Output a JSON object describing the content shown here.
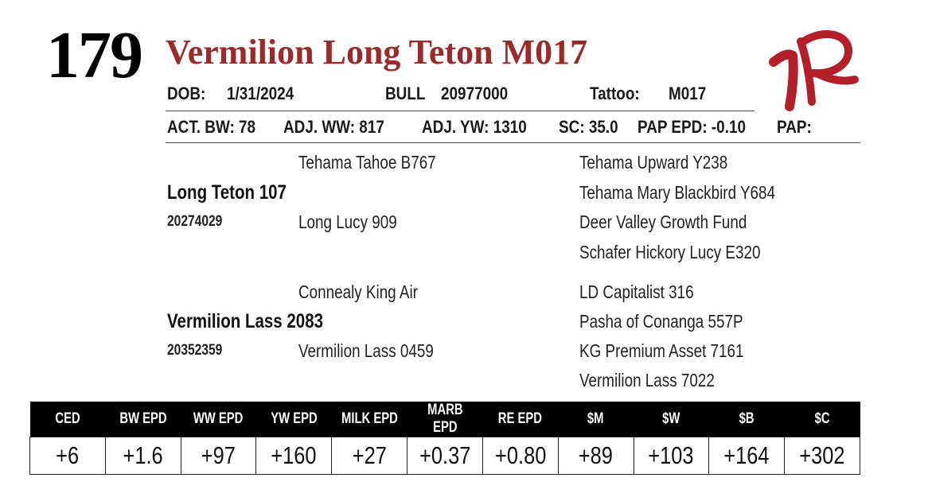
{
  "lot_number": "179",
  "animal_name": "Vermilion Long Teton M017",
  "info": {
    "dob_label": "DOB:",
    "dob_value": "1/31/2024",
    "sex_label": "BULL",
    "reg_number": "20977000",
    "tattoo_label": "Tattoo:",
    "tattoo_value": "M017",
    "act_bw": "ACT. BW: 78",
    "adj_ww": "ADJ. WW: 817",
    "adj_yw": "ADJ. YW: 1310",
    "sc": "SC: 35.0",
    "pap_epd": "PAP EPD: -0.10",
    "pap": "PAP:"
  },
  "pedigree": {
    "sire": {
      "name": "Long Teton 107",
      "reg": "20274029"
    },
    "sire_sire": "Tehama Tahoe B767",
    "sire_dam": "Long Lucy 909",
    "sire_sire_sire": "Tehama Upward Y238",
    "sire_sire_dam": "Tehama Mary Blackbird Y684",
    "sire_dam_sire": "Deer Valley Growth Fund",
    "sire_dam_dam": "Schafer Hickory Lucy E320",
    "dam": {
      "name": "Vermilion Lass 2083",
      "reg": "20352359"
    },
    "dam_sire": "Connealy King Air",
    "dam_dam": "Vermilion Lass 0459",
    "dam_sire_sire": "LD Capitalist 316",
    "dam_sire_dam": "Pasha of Conanga 557P",
    "dam_dam_sire": "KG Premium Asset 7161",
    "dam_dam_dam": "Vermilion Lass 7022"
  },
  "epd_table": {
    "headers": [
      "CED",
      "BW EPD",
      "WW EPD",
      "YW EPD",
      "MILK EPD",
      "MARB EPD",
      "RE EPD",
      "$M",
      "$W",
      "$B",
      "$C"
    ],
    "values": [
      "+6",
      "+1.6",
      "+97",
      "+160",
      "+27",
      "+0.37",
      "+0.80",
      "+89",
      "+103",
      "+164",
      "+302"
    ]
  },
  "colors": {
    "accent": "#9b2a2c",
    "table_header_bg": "#000000",
    "logo": "#b3202a"
  },
  "logo_icon": "vr-brand-logo-icon"
}
